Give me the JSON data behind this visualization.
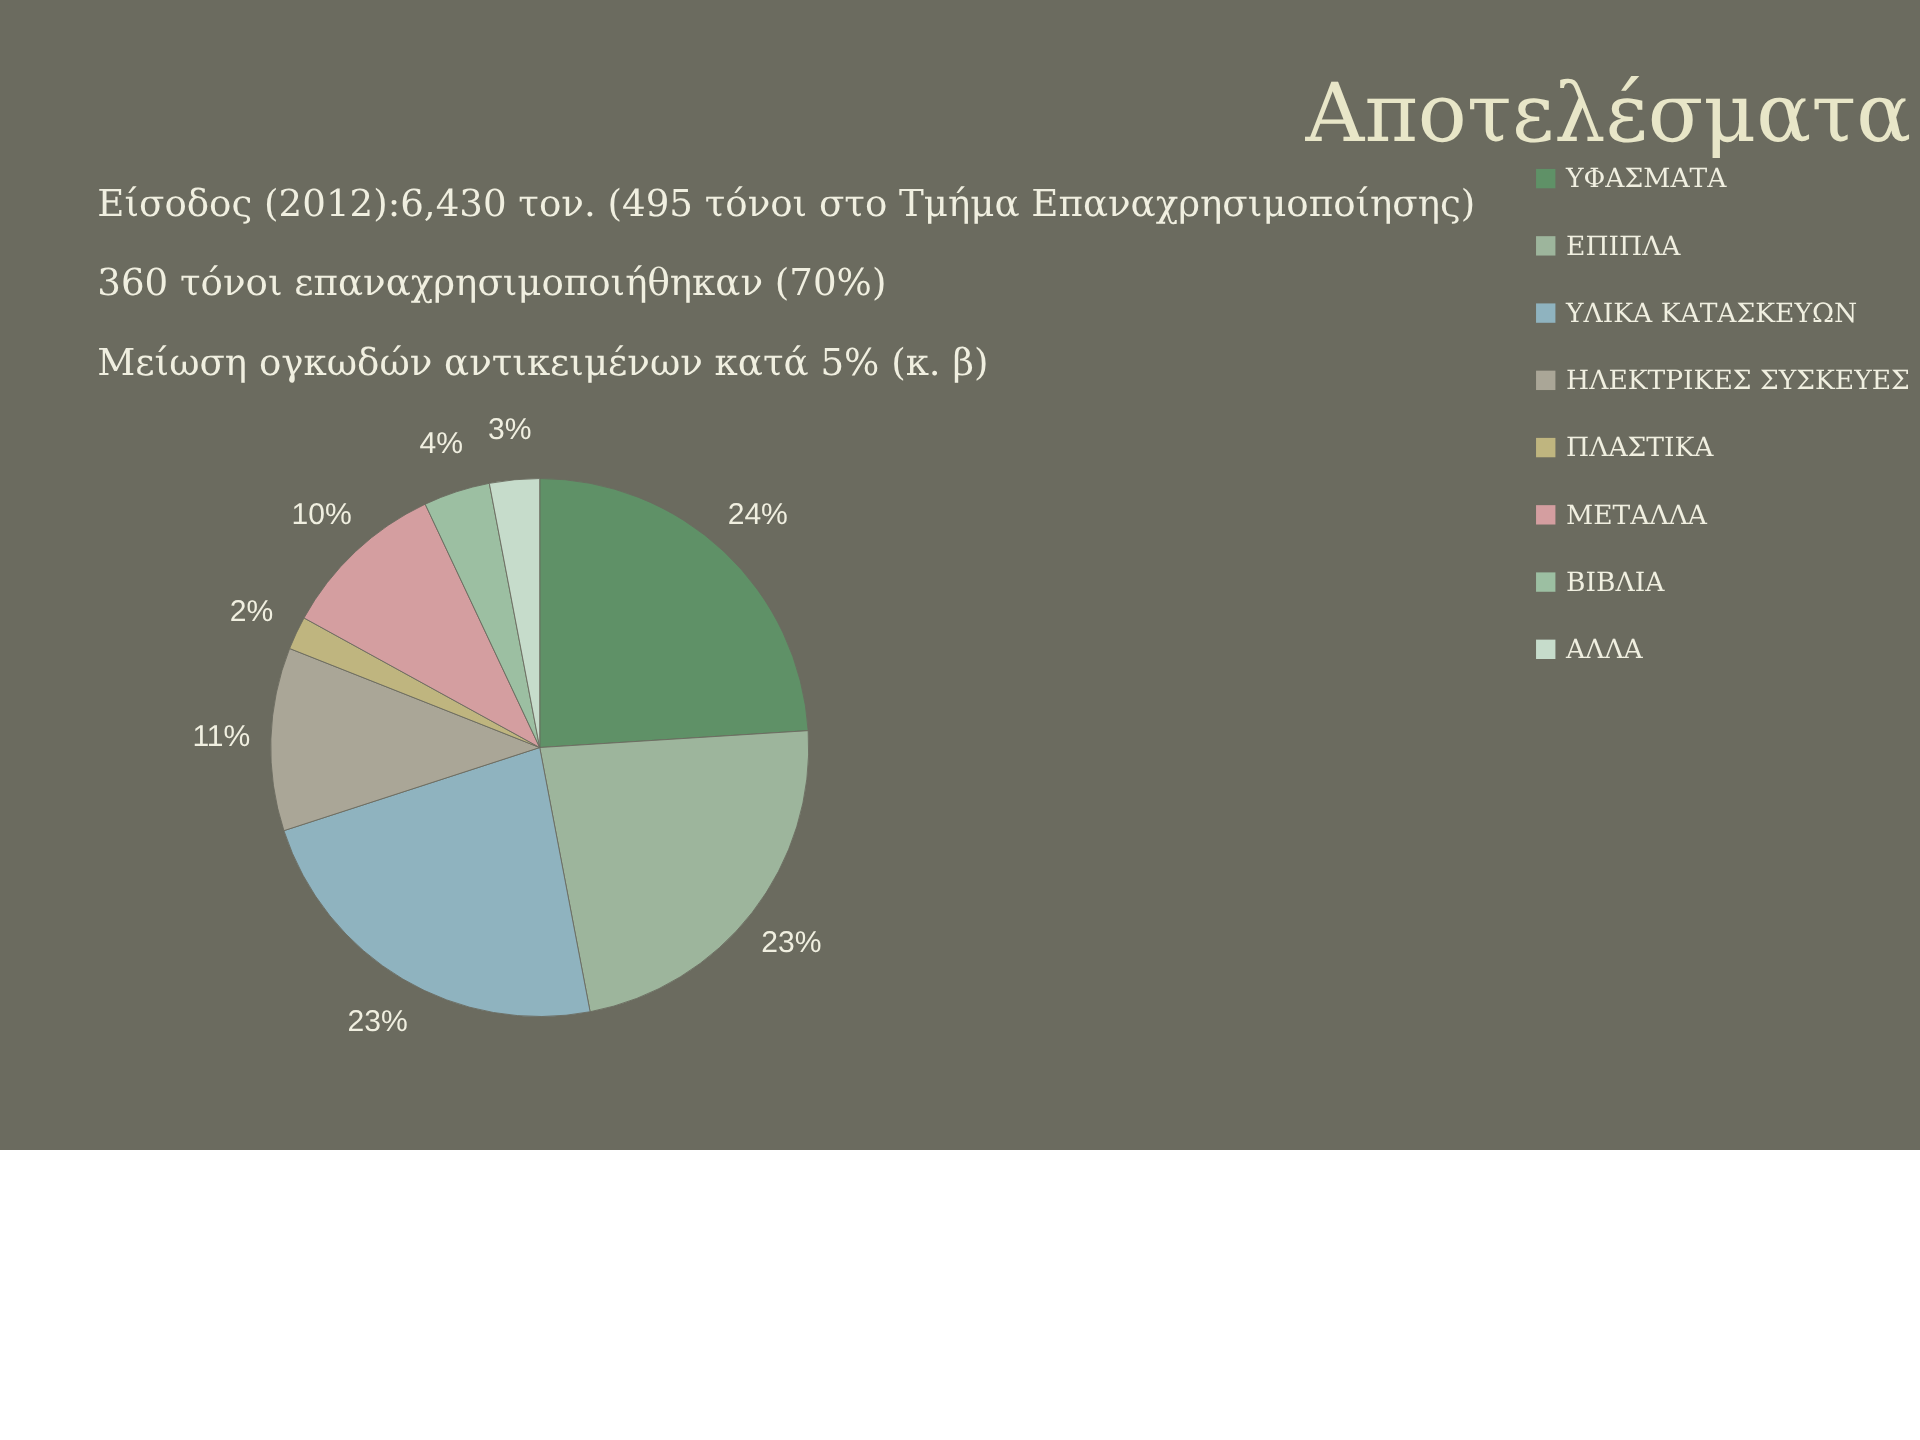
{
  "chart_data": {
    "type": "pie",
    "title": "Αποτελέσματα",
    "annotations": [
      "Είσοδος (2012):6,430 τον.  (495 τόνοι στο  Τμήμα Επαναχρησιμοποίησης)",
      "360 τόνοι επαναχρησιμοποιήθηκαν  (70%)",
      "Μείωση  ογκωδών αντικειμένων κατά 5% (κ. β)"
    ],
    "categories": [
      "ΥΦΑΣΜΑΤΑ",
      "ΕΠΙΠΛΑ",
      "ΥΛΙΚΑ ΚΑΤΑΣΚΕΥΩΝ",
      "ΗΛΕΚΤΡΙΚΕΣ ΣΥΣΚΕΥΕΣ",
      "ΠΛΑΣΤΙΚΑ",
      "ΜΕΤΑΛΛΑ",
      "ΒΙΒΛΙΑ",
      "ΑΛΛΑ"
    ],
    "values": [
      24,
      23,
      23,
      11,
      2,
      10,
      4,
      3
    ],
    "value_labels": [
      "24%",
      "23%",
      "23%",
      "11%",
      "2%",
      "10%",
      "4%",
      "3%"
    ],
    "colors": [
      "#5f9167",
      "#9db59c",
      "#8fb3bf",
      "#aaa697",
      "#bfb57f",
      "#d49ea0",
      "#9cbfa2",
      "#c6dccb"
    ],
    "legend": "right"
  }
}
